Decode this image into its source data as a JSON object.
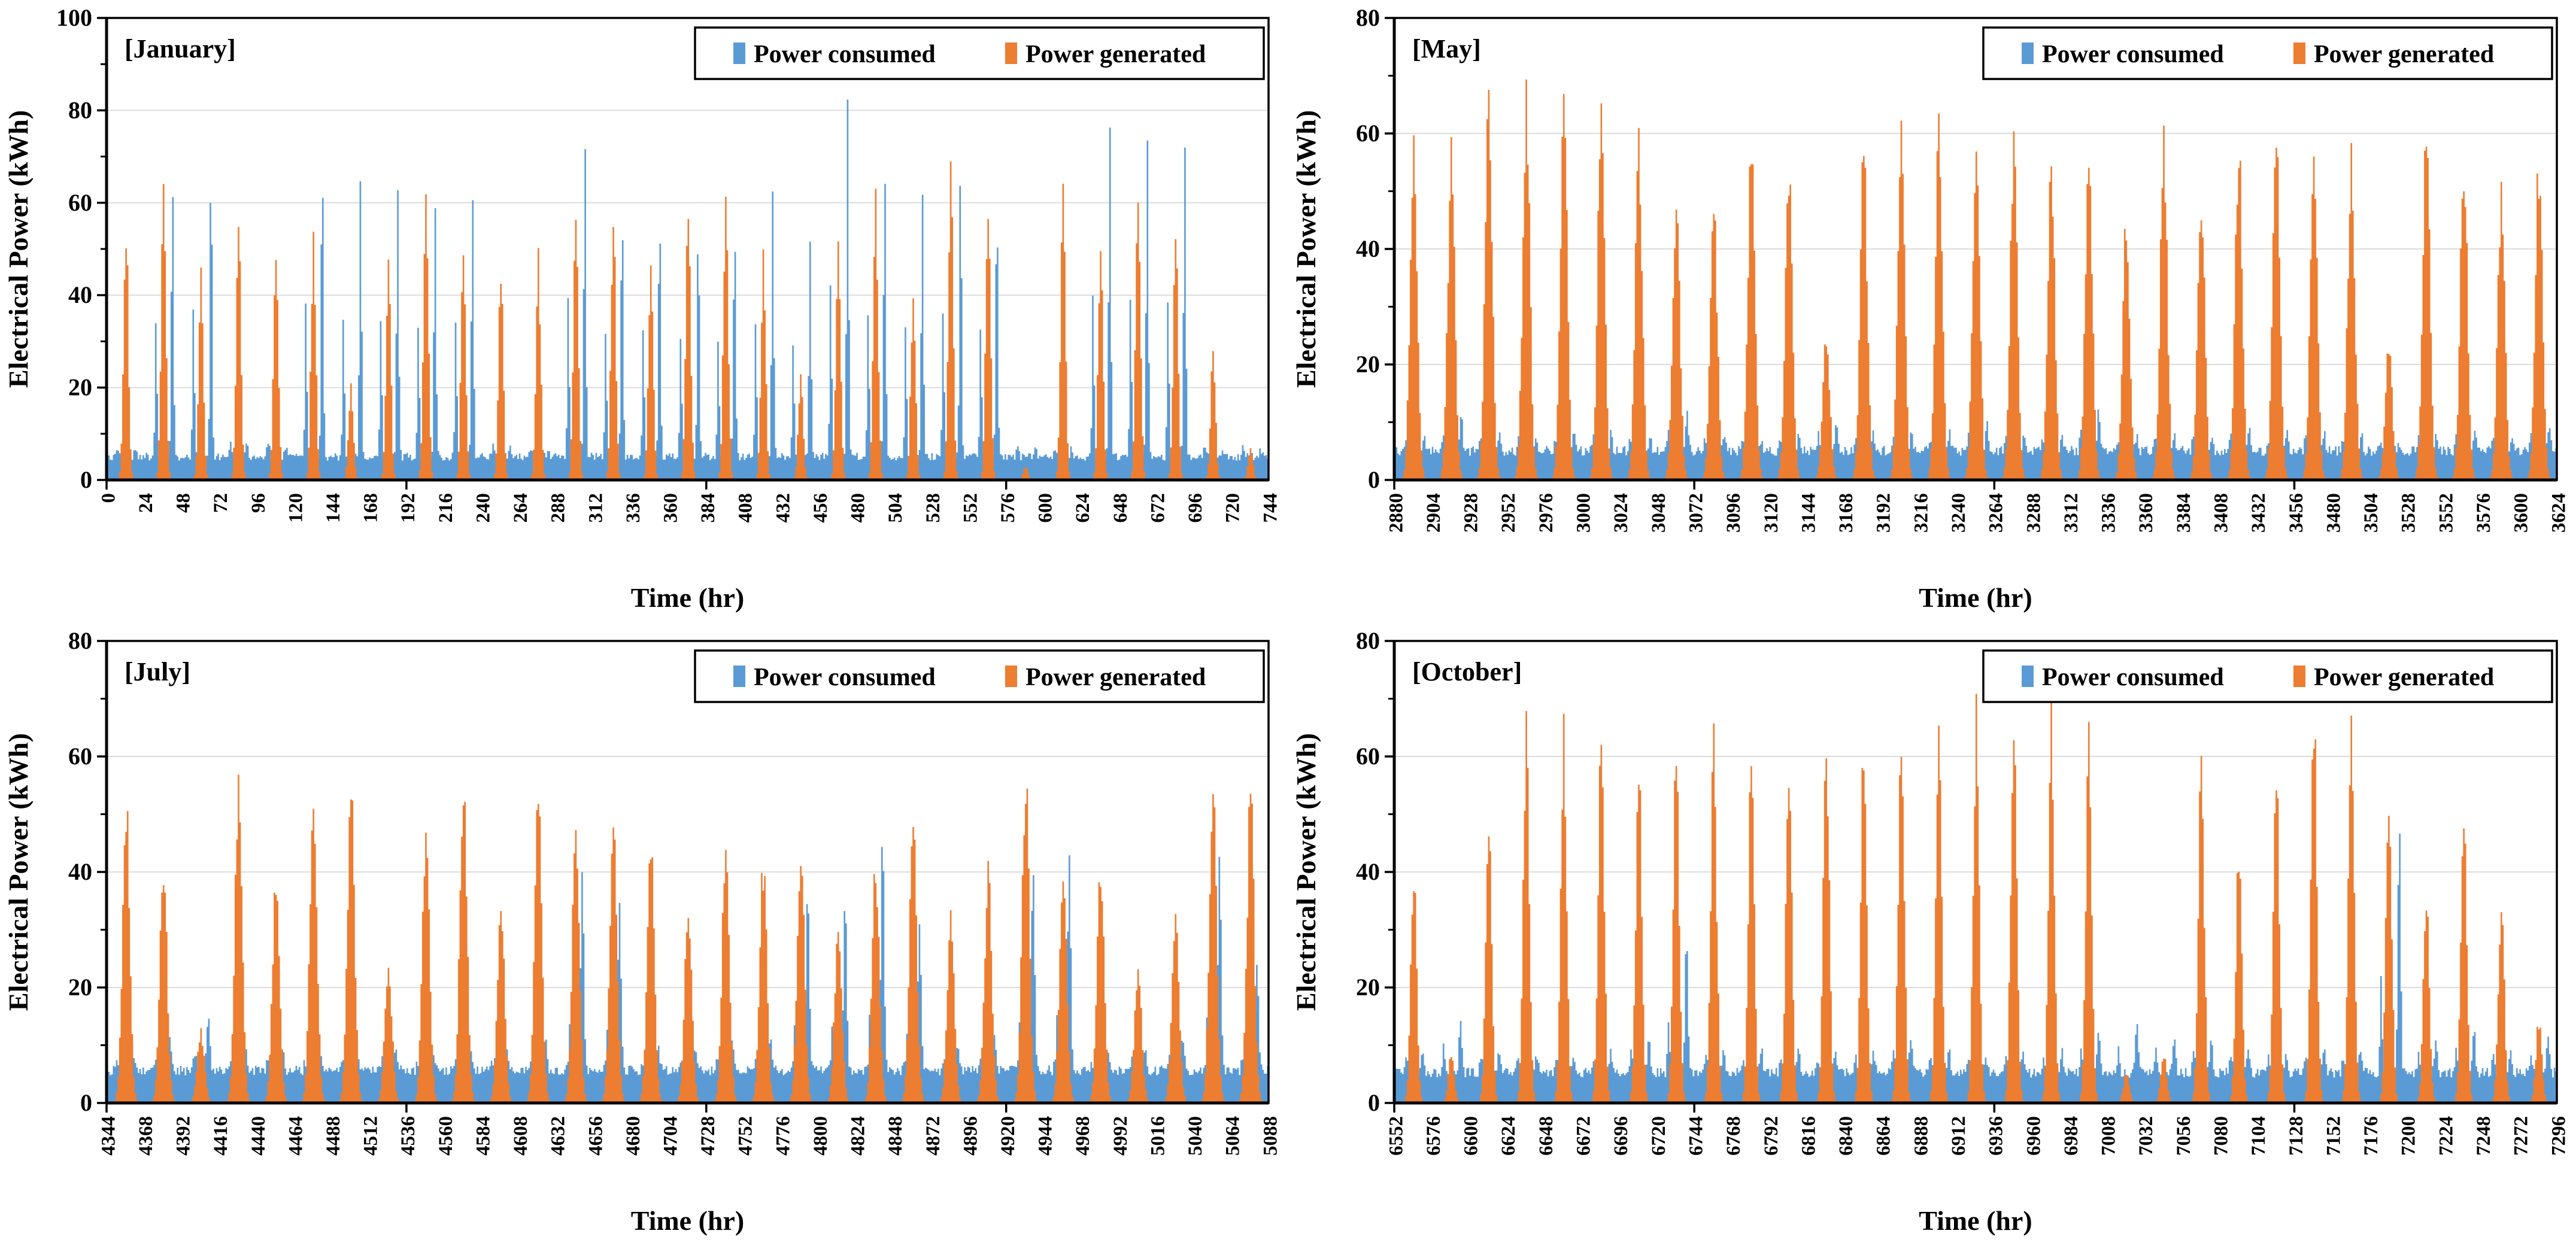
{
  "page": {
    "background": "#FFFFFF"
  },
  "style": {
    "consumed_color": "#5B9BD5",
    "generated_color": "#ED7D31",
    "gridline_color": "#DCDCDC",
    "axis_color": "#000000",
    "text_color": "#000000",
    "legend_border_color": "#000000",
    "legend_background": "#FFFFFF"
  },
  "legend": {
    "items": [
      {
        "label": "Power consumed",
        "series": "consumed"
      },
      {
        "label": "Power generated",
        "series": "generated"
      }
    ]
  },
  "chart_data": [
    {
      "type": "bar",
      "title": "[January]",
      "xlabel": "Time (hr)",
      "ylabel": "Electrical Power (kWh)",
      "series_names": [
        "Power consumed",
        "Power generated"
      ],
      "units": "kWh",
      "x_start": 0,
      "x_end": 744,
      "hours": 744,
      "xticks": [
        0,
        24,
        48,
        72,
        96,
        120,
        144,
        168,
        192,
        216,
        240,
        264,
        288,
        312,
        336,
        360,
        384,
        408,
        432,
        456,
        480,
        504,
        528,
        552,
        576,
        600,
        624,
        648,
        672,
        696,
        720,
        744
      ],
      "ylim": [
        0,
        100
      ],
      "ytick_step": 20,
      "y_minor_step": 10,
      "x_tickmark_step": 192,
      "grid": true,
      "legend_position": "top-right",
      "consumption_baseline_kwh": 5.0,
      "daily_peaks": {
        "generated": [
          54,
          59,
          42,
          55,
          52,
          52,
          20,
          46,
          63,
          48,
          46,
          46,
          61,
          55,
          45,
          60,
          62,
          46,
          22,
          52,
          58,
          40,
          65,
          62,
          3,
          64,
          53,
          64,
          53,
          29,
          7
        ],
        "consumed_spike": [
          8,
          66,
          71,
          9,
          8,
          72,
          66,
          65,
          62,
          64,
          8,
          8,
          76,
          61,
          60,
          57,
          57,
          63,
          53,
          83,
          69,
          64,
          70,
          63,
          8,
          8,
          79,
          76,
          74,
          8,
          8
        ]
      },
      "shape": {
        "solar_center_hour": 12.5,
        "solar_sigma_hours": 1.5,
        "spike_hour": 18.5,
        "spike_sigma_hours": 0.7,
        "morning_spike_ratio": 0.5,
        "morning_spike_hour": 7.7,
        "seed": 1
      }
    },
    {
      "type": "bar",
      "title": "[May]",
      "xlabel": "Time (hr)",
      "ylabel": "Electrical Power (kWh)",
      "series_names": [
        "Power consumed",
        "Power generated"
      ],
      "units": "kWh",
      "x_start": 2880,
      "x_end": 3624,
      "hours": 744,
      "xticks": [
        2880,
        2904,
        2928,
        2952,
        2976,
        3000,
        3024,
        3048,
        3072,
        3096,
        3120,
        3144,
        3168,
        3192,
        3216,
        3240,
        3264,
        3288,
        3312,
        3336,
        3360,
        3384,
        3408,
        3432,
        3456,
        3480,
        3504,
        3528,
        3552,
        3576,
        3600,
        3624
      ],
      "ylim": [
        0,
        80
      ],
      "ytick_step": 20,
      "y_minor_step": 10,
      "x_tickmark_step": 192,
      "grid": true,
      "legend_position": "top-right",
      "consumption_baseline_kwh": 5.0,
      "daily_peaks": {
        "generated": [
          57,
          55,
          65,
          64,
          64,
          62,
          56,
          49,
          46,
          56,
          53,
          24,
          55,
          58,
          58,
          60,
          58,
          52,
          55,
          45,
          56,
          48,
          58,
          58,
          53,
          56,
          22,
          61,
          55,
          49,
          54
        ],
        "consumed_spike": [
          9,
          12,
          9,
          8,
          9,
          10,
          9,
          13,
          9,
          8,
          9,
          12,
          9,
          10,
          9,
          11,
          9,
          9,
          13,
          9,
          9,
          9,
          10,
          9,
          9,
          9,
          8,
          9,
          10,
          9,
          11
        ]
      },
      "shape": {
        "solar_center_hour": 12.5,
        "solar_sigma_hours": 2.3,
        "spike_hour": 19.2,
        "spike_sigma_hours": 0.8,
        "morning_spike_ratio": 0.35,
        "morning_spike_hour": 7.5,
        "seed": 2
      }
    },
    {
      "type": "bar",
      "title": "[July]",
      "xlabel": "Time (hr)",
      "ylabel": "Electrical Power (kWh)",
      "series_names": [
        "Power consumed",
        "Power generated"
      ],
      "units": "kWh",
      "x_start": 4344,
      "x_end": 5088,
      "hours": 744,
      "xticks": [
        4344,
        4368,
        4392,
        4416,
        4440,
        4464,
        4488,
        4512,
        4536,
        4560,
        4584,
        4608,
        4632,
        4656,
        4680,
        4704,
        4728,
        4752,
        4776,
        4800,
        4824,
        4848,
        4872,
        4896,
        4920,
        4944,
        4968,
        4992,
        5016,
        5040,
        5064,
        5088
      ],
      "ylim": [
        0,
        80
      ],
      "ytick_step": 20,
      "y_minor_step": 10,
      "x_tickmark_step": 192,
      "grid": true,
      "legend_position": "top-right",
      "consumption_baseline_kwh": 5.6,
      "daily_peaks": {
        "generated": [
          51,
          40,
          12,
          54,
          38,
          53,
          54,
          24,
          47,
          55,
          34,
          53,
          46,
          46,
          45,
          34,
          45,
          40,
          44,
          30,
          40,
          48,
          31,
          40,
          56,
          39,
          41,
          23,
          32,
          54,
          52
        ],
        "consumed_spike": [
          10,
          12,
          16,
          9,
          10,
          9,
          9,
          10,
          9,
          10,
          9,
          12,
          40,
          35,
          10,
          10,
          11,
          12,
          38,
          36,
          48,
          31,
          10,
          12,
          42,
          44,
          10,
          10,
          12,
          43,
          25
        ]
      },
      "shape": {
        "solar_center_hour": 12.5,
        "solar_sigma_hours": 2.3,
        "spike_hour": 16.8,
        "spike_sigma_hours": 1.0,
        "morning_spike_ratio": 0.3,
        "morning_spike_hour": 9.0,
        "seed": 3
      }
    },
    {
      "type": "bar",
      "title": "[October]",
      "xlabel": "Time (hr)",
      "ylabel": "Electrical Power (kWh)",
      "series_names": [
        "Power consumed",
        "Power generated"
      ],
      "units": "kWh",
      "x_start": 6552,
      "x_end": 7296,
      "hours": 744,
      "xticks": [
        6552,
        6576,
        6600,
        6624,
        6648,
        6672,
        6696,
        6720,
        6744,
        6768,
        6792,
        6816,
        6840,
        6864,
        6888,
        6912,
        6936,
        6960,
        6984,
        7008,
        7032,
        7056,
        7080,
        7104,
        7128,
        7152,
        7176,
        7200,
        7224,
        7248,
        7272,
        7296
      ],
      "ylim": [
        0,
        80
      ],
      "ytick_step": 20,
      "y_minor_step": 10,
      "x_tickmark_step": 192,
      "grid": true,
      "legend_position": "top-right",
      "consumption_baseline_kwh": 5.2,
      "daily_peaks": {
        "generated": [
          38,
          8,
          48,
          64,
          62,
          63,
          57,
          59,
          60,
          58,
          59,
          63,
          61,
          64,
          61,
          65,
          67,
          63,
          60,
          5,
          8,
          58,
          43,
          58,
          66,
          64,
          52,
          34,
          52,
          34,
          14
        ],
        "consumed_spike": [
          10,
          15,
          10,
          9,
          9,
          10,
          12,
          30,
          10,
          10,
          10,
          9,
          10,
          12,
          10,
          9,
          10,
          10,
          14,
          15,
          13,
          12,
          10,
          10,
          10,
          10,
          50,
          12,
          14,
          10,
          12
        ]
      },
      "shape": {
        "solar_center_hour": 12.5,
        "solar_sigma_hours": 1.9,
        "spike_hour": 18.8,
        "spike_sigma_hours": 0.9,
        "morning_spike_ratio": 0.35,
        "morning_spike_hour": 7.6,
        "seed": 4
      }
    }
  ]
}
